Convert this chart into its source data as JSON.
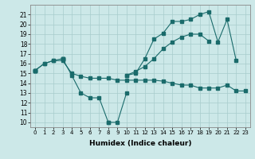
{
  "xlabel": "Humidex (Indice chaleur)",
  "background_color": "#cce8e8",
  "line_color": "#1a6b6b",
  "xlim": [
    -0.5,
    23.5
  ],
  "ylim": [
    9.5,
    22.0
  ],
  "yticks": [
    10,
    11,
    12,
    13,
    14,
    15,
    16,
    17,
    18,
    19,
    20,
    21
  ],
  "xticks": [
    0,
    1,
    2,
    3,
    4,
    5,
    6,
    7,
    8,
    9,
    10,
    11,
    12,
    13,
    14,
    15,
    16,
    17,
    18,
    19,
    20,
    21,
    22,
    23
  ],
  "series": [
    [
      15.3,
      16.0,
      16.3,
      16.3,
      15.0,
      14.7,
      14.5,
      14.5,
      14.5,
      14.3,
      14.3,
      14.3,
      14.3,
      14.3,
      14.2,
      14.0,
      13.8,
      13.8,
      13.5,
      13.5,
      13.5,
      13.8,
      13.2,
      13.2
    ],
    [
      15.3,
      16.0,
      16.3,
      16.5,
      14.8,
      13.0,
      12.5,
      12.5,
      10.0,
      10.0,
      13.0,
      null,
      null,
      null,
      null,
      null,
      null,
      null,
      null,
      null,
      null,
      null,
      null,
      null
    ],
    [
      15.3,
      null,
      null,
      16.5,
      null,
      null,
      null,
      null,
      10.0,
      null,
      null,
      null,
      null,
      null,
      null,
      null,
      null,
      null,
      null,
      null,
      null,
      null,
      null,
      null
    ],
    [
      15.3,
      null,
      null,
      16.5,
      null,
      null,
      null,
      null,
      null,
      null,
      14.8,
      15.0,
      16.5,
      18.5,
      19.1,
      20.3,
      20.3,
      20.5,
      21.0,
      21.3,
      18.2,
      20.5,
      16.3,
      null
    ],
    [
      15.3,
      null,
      null,
      16.5,
      null,
      null,
      null,
      null,
      null,
      null,
      14.8,
      15.2,
      15.7,
      16.5,
      17.5,
      18.2,
      18.7,
      19.0,
      19.0,
      18.3,
      null,
      null,
      null,
      null
    ]
  ]
}
